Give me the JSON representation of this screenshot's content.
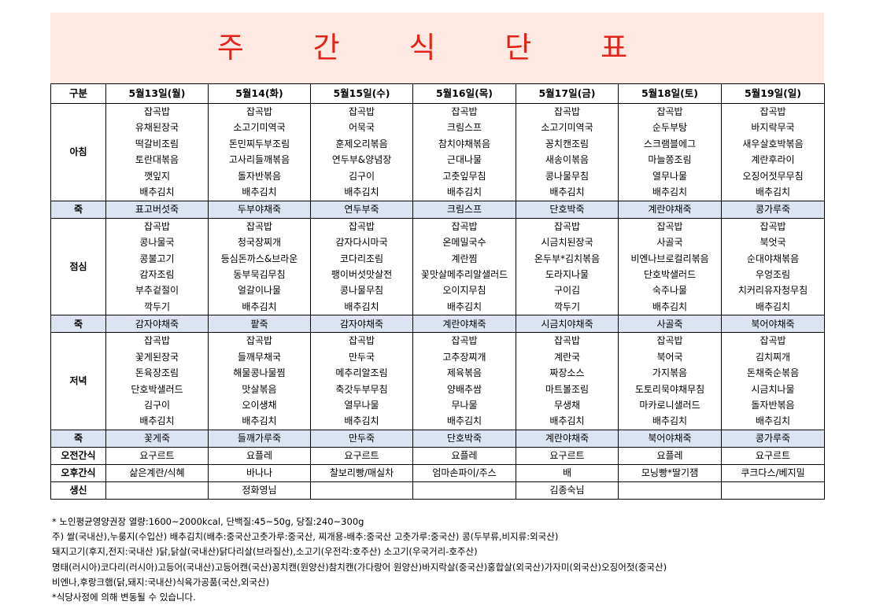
{
  "title": "주 간 식 단 표",
  "header": {
    "corner": "구분",
    "days": [
      "5월13일(월)",
      "5월14(화)",
      "5월15일(수)",
      "5월16일(목)",
      "5월17일(금)",
      "5월18일(토)",
      "5월19일(일)"
    ]
  },
  "breakfast": {
    "label": "아침",
    "days": [
      [
        "잡곡밥",
        "유채된장국",
        "떡갈비조림",
        "토란대볶음",
        "깻잎지",
        "배추김치"
      ],
      [
        "잡곡밥",
        "소고기미역국",
        "돈민찌두부조림",
        "고사리들깨볶음",
        "돌자반볶음",
        "배추김치"
      ],
      [
        "잡곡밥",
        "어묵국",
        "훈제오리볶음",
        "연두부&양념장",
        "김구이",
        "배추김치"
      ],
      [
        "잡곡밥",
        "크림스프",
        "참치야채볶음",
        "근대나물",
        "고춧잎무침",
        "배추김치"
      ],
      [
        "잡곡밥",
        "소고기미역국",
        "꽁치캔조림",
        "새송이볶음",
        "콩나물무침",
        "배추김치"
      ],
      [
        "잡곡밥",
        "순두부탕",
        "스크램블에그",
        "마늘쫑조림",
        "열무나물",
        "배추김치"
      ],
      [
        "잡곡밥",
        "바지락무국",
        "새우살호박볶음",
        "계란후라이",
        "오징어젓무무침",
        "배추김치"
      ]
    ]
  },
  "porridge1": {
    "label": "죽",
    "items": [
      "표고버섯죽",
      "두부야채죽",
      "연두부죽",
      "크림스프",
      "단호박죽",
      "계란야채죽",
      "콩가루죽"
    ]
  },
  "lunch": {
    "label": "점심",
    "days": [
      [
        "잡곡밥",
        "콩나물국",
        "콩불고기",
        "감자조림",
        "부추겉절이",
        "깍두기"
      ],
      [
        "잡곡밥",
        "청국장찌개",
        "등심돈까스&브라운",
        "동부묵김무침",
        "얼갈이나물",
        "배추김치"
      ],
      [
        "잡곡밥",
        "감자다시마국",
        "코다리조림",
        "팽이버섯맛살전",
        "콩나물무침",
        "배추김치"
      ],
      [
        "잡곡밥",
        "온메밀국수",
        "계란찜",
        "꽃맛살메추리알샐러드",
        "오이지무침",
        "배추김치"
      ],
      [
        "잡곡밥",
        "시금치된장국",
        "온두부*김치볶음",
        "도라지나물",
        "구이김",
        "깍두기"
      ],
      [
        "잡곡밥",
        "사골국",
        "비엔나브로컬리볶음",
        "단호박샐러드",
        "숙주나물",
        "배추김치"
      ],
      [
        "잡곡밥",
        "북엇국",
        "순대야채볶음",
        "우엉조림",
        "치커리유자청무침",
        "배추김치"
      ]
    ]
  },
  "porridge2": {
    "label": "죽",
    "items": [
      "감자야채죽",
      "팥죽",
      "감자야채죽",
      "계란야채죽",
      "시금치야채죽",
      "사골죽",
      "북어야채죽"
    ]
  },
  "dinner": {
    "label": "저녁",
    "days": [
      [
        "잡곡밥",
        "꽃게된장국",
        "돈육장조림",
        "단호박샐러드",
        "김구이",
        "배추김치"
      ],
      [
        "잡곡밥",
        "들깨무채국",
        "해물콩나물찜",
        "맛살볶음",
        "오이생채",
        "배추김치"
      ],
      [
        "잡곡밥",
        "만두국",
        "메추리알조림",
        "축갓두부무침",
        "열무나물",
        "배추김치"
      ],
      [
        "잡곡밥",
        "고추장찌개",
        "제육볶음",
        "양배추쌈",
        "무나물",
        "배추김치"
      ],
      [
        "잡곡밥",
        "계란국",
        "짜장소스",
        "마트볼조림",
        "무생채",
        "배추김치"
      ],
      [
        "잡곡밥",
        "북어국",
        "가지볶음",
        "도토리묵야채무침",
        "마카로니샐러드",
        "배추김치"
      ],
      [
        "잡곡밥",
        "김치찌개",
        "돈채죽순볶음",
        "시금치나물",
        "돌자반볶음",
        "배추김치"
      ]
    ]
  },
  "porridge3": {
    "label": "죽",
    "items": [
      "꽃게죽",
      "들깨가루죽",
      "만두죽",
      "단호박죽",
      "계란야채죽",
      "북어야채죽",
      "콩가루죽"
    ]
  },
  "am_snack": {
    "label": "오전간식",
    "items": [
      "요구르트",
      "요플레",
      "요구르트",
      "요플레",
      "요구르트",
      "요플레",
      "요구르트"
    ]
  },
  "pm_snack": {
    "label": "오후간식",
    "items": [
      "삶은계란/식혜",
      "바나나",
      "찰보리빵/매실차",
      "엄마손파이/주스",
      "배",
      "모닝빵*딸기잼",
      "쿠크다스/베지밀"
    ]
  },
  "birthday": {
    "label": "생신",
    "items": [
      "",
      "정화영님",
      "",
      "",
      "김종숙님",
      "",
      ""
    ]
  },
  "notes": [
    "* 노인평균영양권장 열량:1600~2000kcal, 단백질:45~50g, 당질:240~300g",
    "주) 쌀(국내산),누룽지(수입산) 배추김치(배추:중국산고춧가루:중국산, 찌개용-배추:중국산 고춧가루:중국산) 콩(두부류,비지류:외국산)",
    "돼지고기(후지,전지:국내산 )닭,닭살(국내산)닭다리살(브라질산),소고기(우전각:호주산) 소고기(우국거리-호주산)",
    "명태(러시아)코다리(러시아)고등어(국내산)고등어캔(국산)꽁치캔(원양산)참치캔(가다랑어 원양산)바지락살(중국산)홍합살(외국산)가자미(외국산)오징어젓(중국산)",
    "비엔나,후랑크햄(닭,돼지:국내산)식육가공품(국산,외국산)",
    "*식당사정에 의해 변동될 수 있습니다."
  ]
}
